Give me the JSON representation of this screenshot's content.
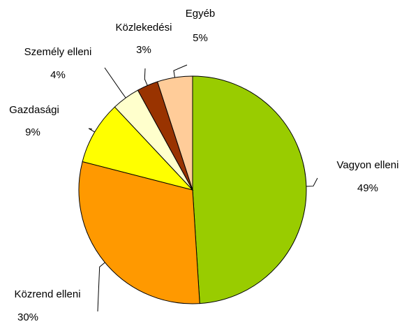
{
  "chart_data": {
    "type": "pie",
    "categories": [
      "Vagyon elleni",
      "Közrend elleni",
      "Gazdasági",
      "Személy elleni",
      "Közlekedési",
      "Egyéb"
    ],
    "values": [
      49,
      30,
      9,
      4,
      3,
      5
    ],
    "value_labels": [
      "49%",
      "30%",
      "9%",
      "4%",
      "3%",
      "5%"
    ],
    "colors": [
      "#99cc00",
      "#ff9900",
      "#ffff00",
      "#ffffcc",
      "#993300",
      "#ffcc99"
    ]
  }
}
